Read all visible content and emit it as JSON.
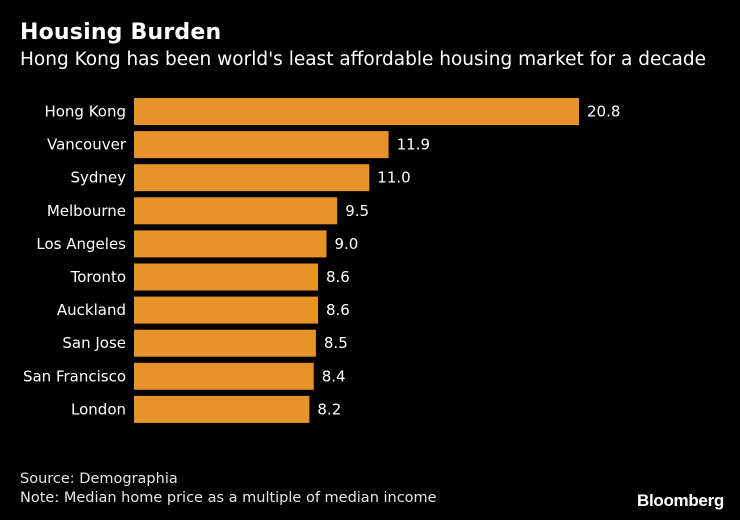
{
  "header": {
    "title": "Housing Burden",
    "subtitle": "Hong Kong has been world's least affordable housing market for a decade"
  },
  "footer": {
    "source": "Source: Demographia",
    "note": "Note: Median home price as a multiple of median income",
    "brand": "Bloomberg"
  },
  "colors": {
    "bar": "#E8922A",
    "background": "#000000",
    "text": "#FFFFFF"
  },
  "chart_data": {
    "type": "bar",
    "orientation": "horizontal",
    "title": "Housing Burden",
    "subtitle": "Hong Kong has been world's least affordable housing market for a decade",
    "categories": [
      "Hong Kong",
      "Vancouver",
      "Sydney",
      "Melbourne",
      "Los Angeles",
      "Toronto",
      "Auckland",
      "San Jose",
      "San Francisco",
      "London"
    ],
    "values": [
      20.8,
      11.9,
      11.0,
      9.5,
      9.0,
      8.6,
      8.6,
      8.5,
      8.4,
      8.2
    ],
    "value_labels": [
      "20.8",
      "11.9",
      "11.0",
      "9.5",
      "9.0",
      "8.6",
      "8.6",
      "8.5",
      "8.4",
      "8.2"
    ],
    "xlim": [
      0,
      20.8
    ],
    "grid": false,
    "legend": "none"
  }
}
